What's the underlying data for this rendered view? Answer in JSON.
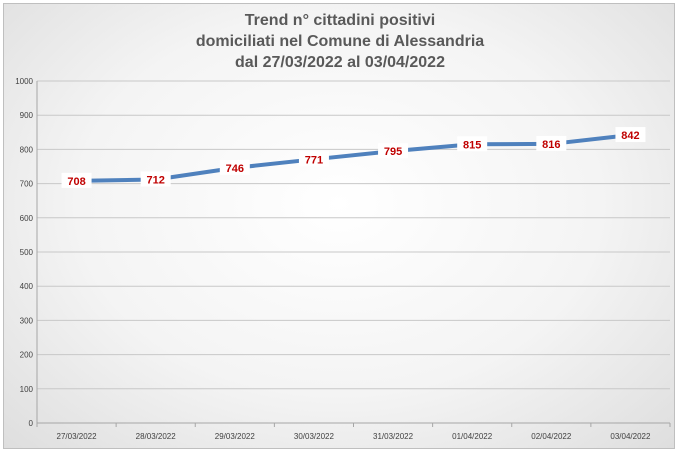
{
  "chart_data": {
    "type": "line",
    "title_lines": [
      "Trend n° cittadini positivi",
      "domiciliati nel Comune di Alessandria",
      "dal 27/03/2022 al 03/04/2022"
    ],
    "categories": [
      "27/03/2022",
      "28/03/2022",
      "29/03/2022",
      "30/03/2022",
      "31/03/2022",
      "01/04/2022",
      "02/04/2022",
      "03/04/2022"
    ],
    "series": [
      {
        "values": [
          708,
          712,
          746,
          771,
          795,
          815,
          816,
          842
        ],
        "color": "#4f81bd"
      }
    ],
    "data_label_color": "#c00000",
    "ylim": [
      0,
      1000
    ],
    "yticks": [
      0,
      100,
      200,
      300,
      400,
      500,
      600,
      700,
      800,
      900,
      1000
    ],
    "grid": true,
    "legend": "none"
  }
}
